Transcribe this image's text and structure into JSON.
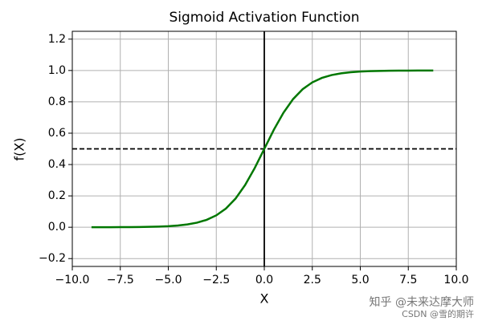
{
  "chart_data": {
    "type": "line",
    "title": "Sigmoid Activation Function",
    "x_label": "X",
    "y_label": "f(X)",
    "x": [
      -9,
      -8.5,
      -8,
      -7.5,
      -7,
      -6.5,
      -6,
      -5.5,
      -5,
      -4.5,
      -4,
      -3.5,
      -3,
      -2.5,
      -2,
      -1.5,
      -1,
      -0.5,
      0,
      0.5,
      1,
      1.5,
      2,
      2.5,
      3,
      3.5,
      4,
      4.5,
      5,
      5.5,
      6,
      6.5,
      7,
      7.5,
      8,
      8.5,
      8.8
    ],
    "series": [
      {
        "color": "#007700",
        "values": [
          0.0001,
          0.0002,
          0.0003,
          0.0006,
          0.0009,
          0.0015,
          0.0025,
          0.0041,
          0.0067,
          0.011,
          0.018,
          0.0293,
          0.0474,
          0.0759,
          0.1192,
          0.1824,
          0.2689,
          0.3775,
          0.5,
          0.6225,
          0.7311,
          0.8176,
          0.8808,
          0.9241,
          0.9526,
          0.9707,
          0.982,
          0.989,
          0.9933,
          0.9959,
          0.9975,
          0.9985,
          0.9991,
          0.9994,
          0.9997,
          0.9998,
          0.9998
        ]
      }
    ],
    "hline": 0.5,
    "vline": 0,
    "xlim": [
      -10,
      10
    ],
    "xticks": [
      {
        "value": -10,
        "label": "−10.0"
      },
      {
        "value": -7.5,
        "label": "−7.5"
      },
      {
        "value": -5,
        "label": "−5.0"
      },
      {
        "value": -2.5,
        "label": "−2.5"
      },
      {
        "value": 0,
        "label": "0.0"
      },
      2.5,
      {
        "value": 5,
        "label": "5.0"
      },
      7.5,
      {
        "value": 10,
        "label": "10.0"
      }
    ],
    "ylim": [
      -0.25,
      1.25
    ],
    "yticks": [
      {
        "value": -0.2,
        "label": "−0.2"
      },
      {
        "value": 0,
        "label": "0.0"
      },
      0.2,
      0.4,
      0.6,
      0.8,
      {
        "value": 1,
        "label": "1.0"
      },
      1.2
    ],
    "grid": true
  },
  "watermark": {
    "zhihu": "知乎 @未来达摩大师",
    "csdn": "CSDN @雪的期许"
  }
}
